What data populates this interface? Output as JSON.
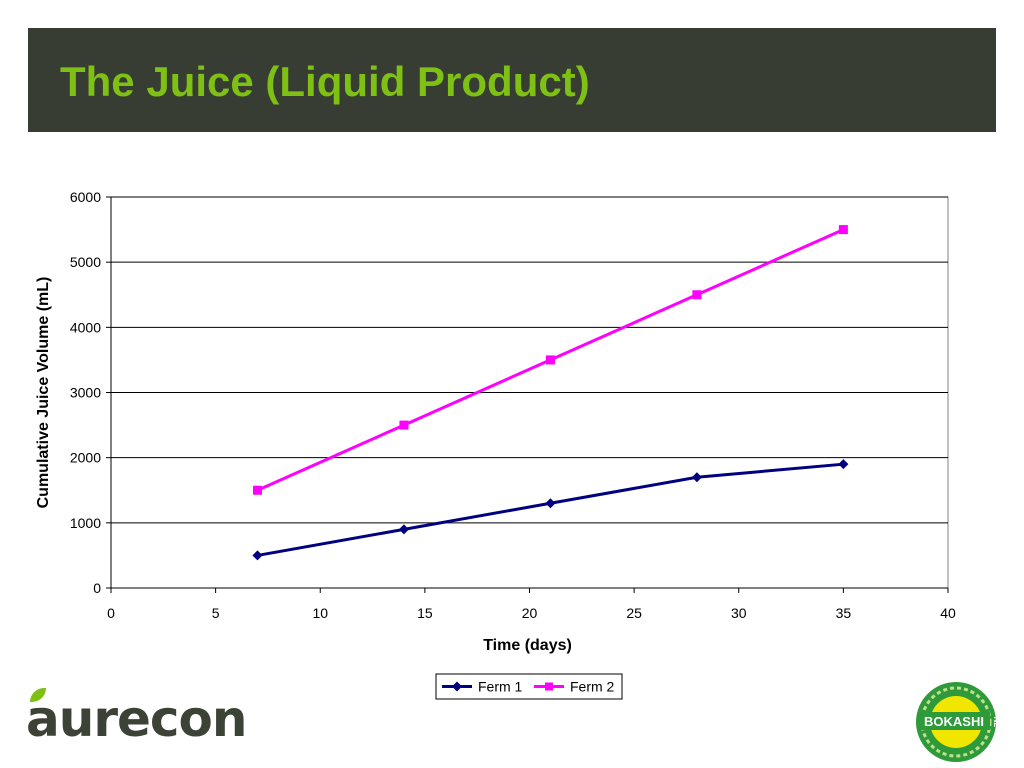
{
  "slide": {
    "title": "The Juice (Liquid Product)",
    "title_color": "#7ec013",
    "title_bar_color": "#373d33"
  },
  "logos": {
    "left": {
      "text": "aurecon",
      "color": "#3d4237",
      "accent": "#7ec013"
    },
    "right": {
      "text": "BOKASHI",
      "suffix": "NZ",
      "colors": [
        "#2e9a3a",
        "#f0e600"
      ]
    }
  },
  "chart_data": {
    "type": "scatter",
    "title": "",
    "xlabel": "Time (days)",
    "ylabel": "Cumulative Juice Volume (mL)",
    "xlim": [
      0,
      40
    ],
    "ylim": [
      0,
      6000
    ],
    "xticks": [
      0,
      5,
      10,
      15,
      20,
      25,
      30,
      35,
      40
    ],
    "yticks": [
      0,
      1000,
      2000,
      3000,
      4000,
      5000,
      6000
    ],
    "grid": "horizontal",
    "legend": "bottom-center",
    "lines_connect_points": true,
    "series": [
      {
        "name": "Ferm 1",
        "color": "#000080",
        "marker": "diamond",
        "x": [
          7,
          14,
          21,
          28,
          35
        ],
        "y": [
          500,
          900,
          1300,
          1700,
          1900
        ]
      },
      {
        "name": "Ferm 2",
        "color": "#ff00ff",
        "marker": "square",
        "x": [
          7,
          14,
          21,
          28,
          35
        ],
        "y": [
          1500,
          2500,
          3500,
          4500,
          5500
        ]
      }
    ]
  }
}
